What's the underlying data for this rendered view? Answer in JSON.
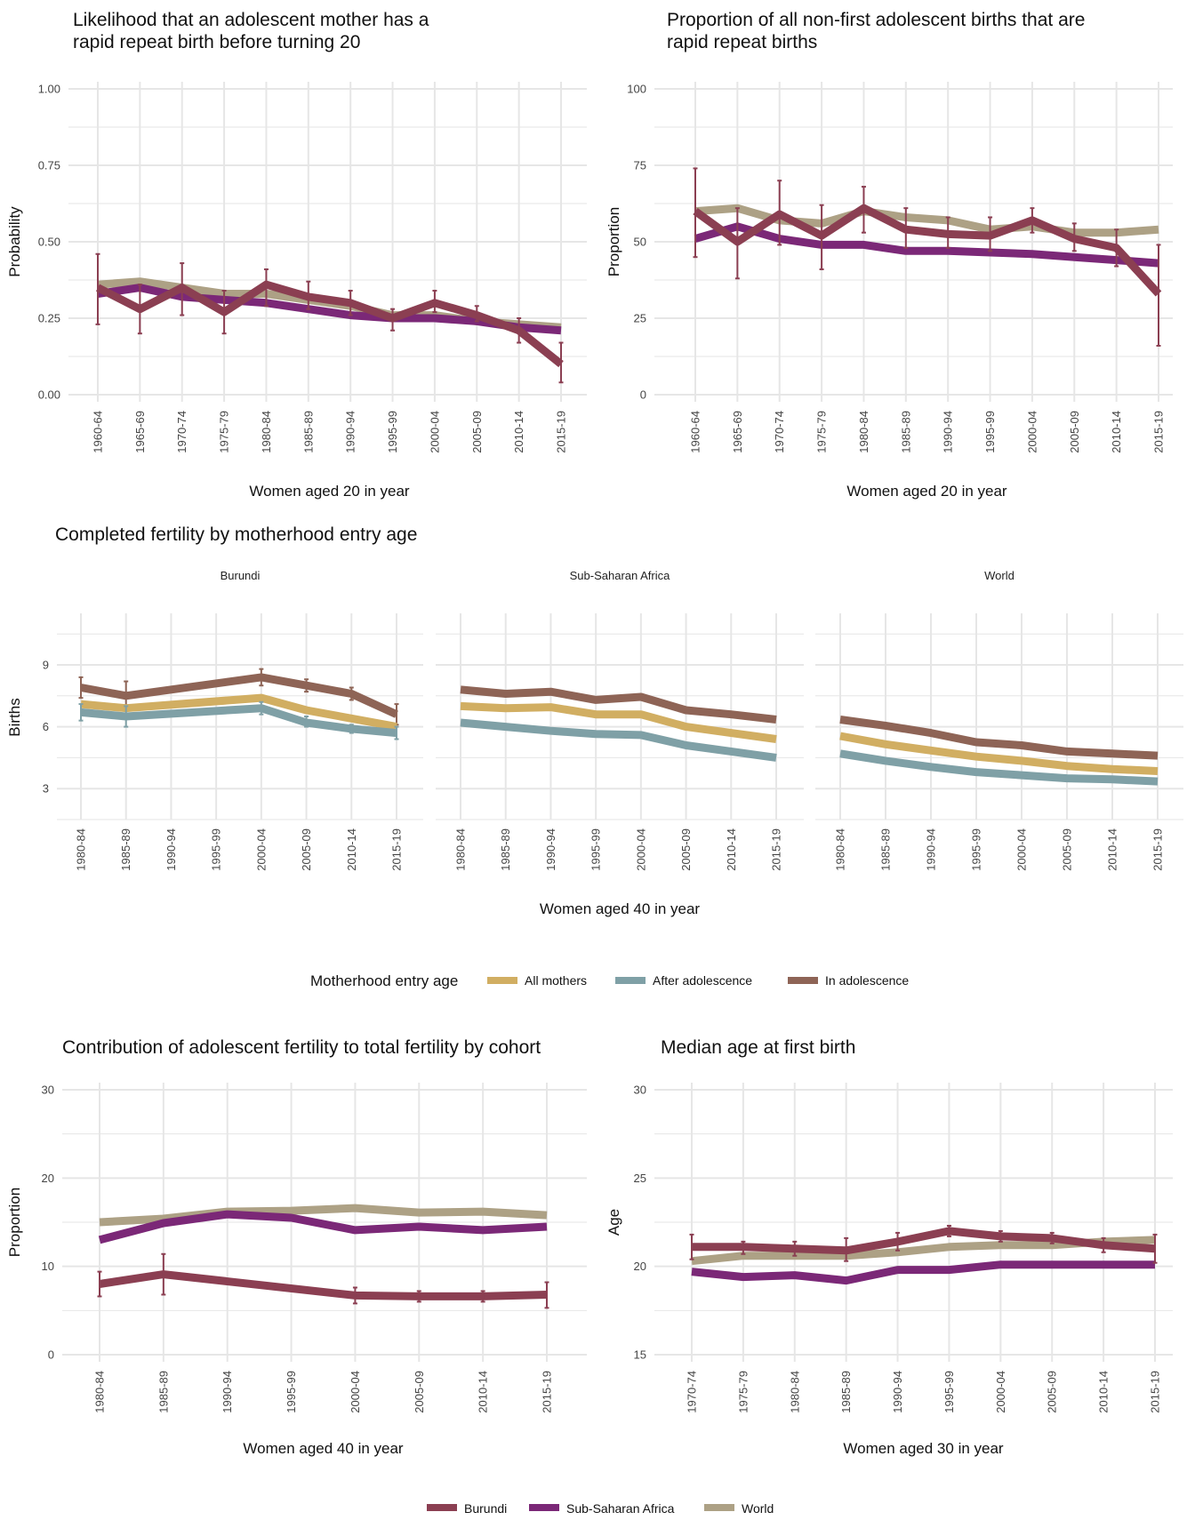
{
  "colors": {
    "burundi": "#8B3F52",
    "ssa": "#7B2877",
    "world": "#ADA185",
    "all_mothers": "#D1AE62",
    "after_adolescence": "#7FA0A6",
    "in_adolescence": "#8E6456",
    "grid": "#E6E6E6"
  },
  "legends": {
    "motherhood": {
      "title": "Motherhood entry age",
      "items": [
        "All mothers",
        "After adolescence",
        "In adolescence"
      ]
    },
    "region": {
      "items": [
        "Burundi",
        "Sub-Saharan Africa",
        "World"
      ]
    }
  },
  "chart_data": [
    {
      "id": "rapid_repeat_prob",
      "type": "line",
      "title": "Likelihood that an adolescent mother has a rapid repeat birth before turning 20",
      "title_lines": [
        "Likelihood that an adolescent mother has a",
        "rapid repeat birth before turning 20"
      ],
      "xlabel": "Women aged 20 in year",
      "ylabel": "Probability",
      "categories": [
        "1960-64",
        "1965-69",
        "1970-74",
        "1975-79",
        "1980-84",
        "1985-89",
        "1990-94",
        "1995-99",
        "2000-04",
        "2005-09",
        "2010-14",
        "2015-19"
      ],
      "ylim": [
        0,
        1
      ],
      "yticks": [
        0,
        0.25,
        0.5,
        0.75,
        1.0
      ],
      "ytick_labels": [
        "0.00",
        "0.25",
        "0.50",
        "0.75",
        "1.00"
      ],
      "series": [
        {
          "name": "World",
          "values": [
            0.36,
            0.37,
            0.35,
            0.33,
            0.33,
            0.31,
            0.29,
            0.26,
            0.26,
            0.24,
            0.23,
            0.22
          ]
        },
        {
          "name": "Sub-Saharan Africa",
          "values": [
            0.33,
            0.35,
            0.32,
            0.31,
            0.3,
            0.28,
            0.26,
            0.25,
            0.25,
            0.24,
            0.22,
            0.21
          ]
        },
        {
          "name": "Burundi",
          "values": [
            0.35,
            0.28,
            0.35,
            0.27,
            0.36,
            0.32,
            0.3,
            0.25,
            0.3,
            0.26,
            0.21,
            0.1
          ],
          "err_low": [
            0.23,
            0.2,
            0.26,
            0.2,
            0.29,
            0.28,
            0.26,
            0.21,
            0.27,
            0.24,
            0.17,
            0.04
          ],
          "err_high": [
            0.46,
            0.36,
            0.43,
            0.34,
            0.41,
            0.37,
            0.34,
            0.28,
            0.34,
            0.29,
            0.25,
            0.17
          ]
        }
      ],
      "grid": true
    },
    {
      "id": "rapid_repeat_prop",
      "type": "line",
      "title": "Proportion of all non-first adolescent births that are rapid repeat births",
      "title_lines": [
        "Proportion of all non-first adolescent births that are",
        "rapid repeat births"
      ],
      "xlabel": "Women aged 20 in year",
      "ylabel": "Proportion",
      "categories": [
        "1960-64",
        "1965-69",
        "1970-74",
        "1975-79",
        "1980-84",
        "1985-89",
        "1990-94",
        "1995-99",
        "2000-04",
        "2005-09",
        "2010-14",
        "2015-19"
      ],
      "ylim": [
        0,
        100
      ],
      "yticks": [
        0,
        25,
        50,
        75,
        100
      ],
      "ytick_labels": [
        "0",
        "25",
        "50",
        "75",
        "100"
      ],
      "series": [
        {
          "name": "World",
          "values": [
            60,
            61,
            57,
            56,
            60,
            58,
            57,
            54,
            55,
            53,
            53,
            54
          ]
        },
        {
          "name": "Sub-Saharan Africa",
          "values": [
            51,
            55,
            51,
            49,
            49,
            47,
            47,
            46.5,
            46,
            45,
            44,
            43
          ]
        },
        {
          "name": "Burundi",
          "values": [
            60,
            50,
            59,
            52,
            61,
            54,
            52.5,
            52,
            57,
            51,
            48,
            33
          ],
          "err_low": [
            45,
            38,
            49,
            41,
            53,
            48,
            48,
            47,
            53,
            47,
            42,
            16
          ],
          "err_high": [
            74,
            61,
            70,
            62,
            68,
            61,
            58,
            58,
            61,
            56,
            54,
            49
          ]
        }
      ],
      "grid": true
    },
    {
      "id": "completed_fertility",
      "type": "line",
      "title": "Completed fertility by motherhood entry age",
      "xlabel": "Women aged 40 in year",
      "ylabel": "Births",
      "categories": [
        "1980-84",
        "1985-89",
        "1990-94",
        "1995-99",
        "2000-04",
        "2005-09",
        "2010-14",
        "2015-19"
      ],
      "ylim": [
        1.5,
        11.5
      ],
      "yticks": [
        3,
        6,
        9
      ],
      "ytick_labels": [
        "3",
        "6",
        "9"
      ],
      "facets": [
        {
          "name": "Burundi",
          "series": [
            {
              "name": "In adolescence",
              "values": [
                7.9,
                7.5,
                null,
                null,
                8.4,
                8.0,
                7.6,
                6.6
              ],
              "err_low": [
                7.4,
                6.8,
                null,
                null,
                8.0,
                7.7,
                7.3,
                6.1
              ],
              "err_high": [
                8.4,
                8.2,
                null,
                null,
                8.8,
                8.3,
                7.9,
                7.1
              ]
            },
            {
              "name": "All mothers",
              "values": [
                7.1,
                6.9,
                null,
                null,
                7.4,
                6.8,
                6.4,
                6.0
              ]
            },
            {
              "name": "After adolescence",
              "values": [
                6.7,
                6.5,
                null,
                null,
                6.9,
                6.2,
                5.9,
                5.7
              ],
              "err_low": [
                6.3,
                6.0,
                null,
                null,
                6.6,
                6.0,
                5.7,
                5.4
              ],
              "err_high": [
                7.1,
                7.0,
                null,
                null,
                7.2,
                6.5,
                6.1,
                6.0
              ]
            }
          ]
        },
        {
          "name": "Sub-Saharan Africa",
          "series": [
            {
              "name": "In adolescence",
              "values": [
                7.8,
                7.6,
                7.7,
                7.3,
                7.45,
                6.8,
                6.6,
                6.35
              ]
            },
            {
              "name": "All mothers",
              "values": [
                7.0,
                6.9,
                6.95,
                6.6,
                6.6,
                6.0,
                5.7,
                5.4
              ]
            },
            {
              "name": "After adolescence",
              "values": [
                6.2,
                6.0,
                5.8,
                5.65,
                5.6,
                5.1,
                4.8,
                4.5
              ]
            }
          ]
        },
        {
          "name": "World",
          "series": [
            {
              "name": "In adolescence",
              "values": [
                6.35,
                6.05,
                5.7,
                5.25,
                5.1,
                4.8,
                4.7,
                4.6
              ]
            },
            {
              "name": "All mothers",
              "values": [
                5.55,
                5.15,
                4.85,
                4.55,
                4.35,
                4.1,
                3.95,
                3.85
              ]
            },
            {
              "name": "After adolescence",
              "values": [
                4.7,
                4.35,
                4.05,
                3.8,
                3.65,
                3.5,
                3.45,
                3.35
              ]
            }
          ]
        }
      ],
      "grid": true
    },
    {
      "id": "adolescent_contribution",
      "type": "line",
      "title": "Contribution of adolescent fertility to total fertility by cohort",
      "xlabel": "Women aged 40 in year",
      "ylabel": "Proportion",
      "categories": [
        "1980-84",
        "1985-89",
        "1990-94",
        "1995-99",
        "2000-04",
        "2005-09",
        "2010-14",
        "2015-19"
      ],
      "ylim": [
        0,
        30
      ],
      "yticks": [
        0,
        10,
        20,
        30
      ],
      "ytick_labels": [
        "0",
        "10",
        "20",
        "30"
      ],
      "series": [
        {
          "name": "World",
          "values": [
            15.0,
            15.4,
            16.2,
            16.3,
            16.6,
            16.1,
            16.2,
            15.8
          ]
        },
        {
          "name": "Sub-Saharan Africa",
          "values": [
            13.0,
            14.9,
            15.9,
            15.5,
            14.1,
            14.5,
            14.1,
            14.5
          ]
        },
        {
          "name": "Burundi",
          "values": [
            8.0,
            9.1,
            null,
            null,
            6.7,
            6.6,
            6.6,
            6.8
          ],
          "err_low": [
            6.6,
            6.8,
            null,
            null,
            5.8,
            6.0,
            6.0,
            5.3
          ],
          "err_high": [
            9.4,
            11.4,
            null,
            null,
            7.6,
            7.2,
            7.2,
            8.2
          ]
        }
      ],
      "grid": true
    },
    {
      "id": "median_age_first_birth",
      "type": "line",
      "title": "Median age at first birth",
      "xlabel": "Women aged 30 in year",
      "ylabel": "Age",
      "categories": [
        "1970-74",
        "1975-79",
        "1980-84",
        "1985-89",
        "1990-94",
        "1995-99",
        "2000-04",
        "2005-09",
        "2010-14",
        "2015-19"
      ],
      "ylim": [
        15,
        30
      ],
      "yticks": [
        15,
        20,
        25,
        30
      ],
      "ytick_labels": [
        "15",
        "20",
        "25",
        "30"
      ],
      "series": [
        {
          "name": "World",
          "values": [
            20.3,
            20.6,
            20.6,
            20.6,
            20.8,
            21.1,
            21.2,
            21.2,
            21.4,
            21.5
          ]
        },
        {
          "name": "Sub-Saharan Africa",
          "values": [
            19.7,
            19.4,
            19.5,
            19.2,
            19.8,
            19.8,
            20.1,
            20.1,
            20.1,
            20.1
          ]
        },
        {
          "name": "Burundi",
          "values": [
            21.1,
            21.1,
            21.0,
            20.9,
            21.4,
            22.0,
            21.7,
            21.6,
            21.2,
            21.0
          ],
          "err_low": [
            20.4,
            20.7,
            20.6,
            20.3,
            20.9,
            21.7,
            21.4,
            21.3,
            20.8,
            20.2
          ],
          "err_high": [
            21.8,
            21.4,
            21.4,
            21.6,
            21.9,
            22.3,
            22.0,
            21.9,
            21.6,
            21.8
          ]
        }
      ],
      "grid": true
    }
  ]
}
